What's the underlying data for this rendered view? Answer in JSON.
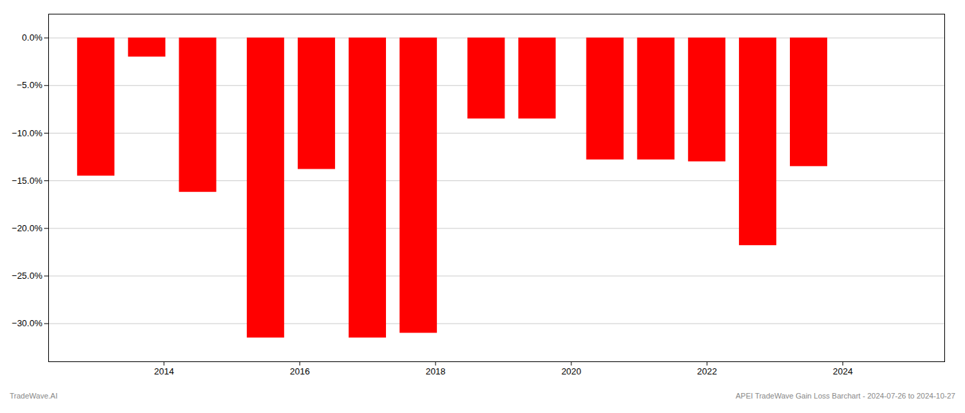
{
  "chart_data": {
    "type": "bar",
    "x": [
      2013.0,
      2013.75,
      2014.5,
      2015.5,
      2016.25,
      2017.0,
      2017.75,
      2018.75,
      2019.5,
      2020.5,
      2021.25,
      2022.0,
      2022.75,
      2023.5
    ],
    "values": [
      -14.5,
      -2.0,
      -16.2,
      -31.5,
      -13.8,
      -31.5,
      -31.0,
      -8.5,
      -8.5,
      -12.8,
      -12.8,
      -13.0,
      -21.8,
      -13.5
    ],
    "color": "#ff0000",
    "xlim": [
      2012.3,
      2025.5
    ],
    "xticks": [
      2014,
      2016,
      2018,
      2020,
      2022,
      2024
    ],
    "ylim": [
      -34.0,
      2.5
    ],
    "yticks": [
      {
        "value": 0,
        "label": "0.0%"
      },
      {
        "value": -5,
        "label": "−5.0%"
      },
      {
        "value": -10,
        "label": "−10.0%"
      },
      {
        "value": -15,
        "label": "−15.0%"
      },
      {
        "value": -20,
        "label": "−20.0%"
      },
      {
        "value": -25,
        "label": "−25.0%"
      },
      {
        "value": -30,
        "label": "−30.0%"
      }
    ],
    "grid": true,
    "annotations": [
      "TradeWave.AI",
      "APEI TradeWave Gain Loss Barchart - 2024-07-26 to 2024-10-27"
    ]
  }
}
